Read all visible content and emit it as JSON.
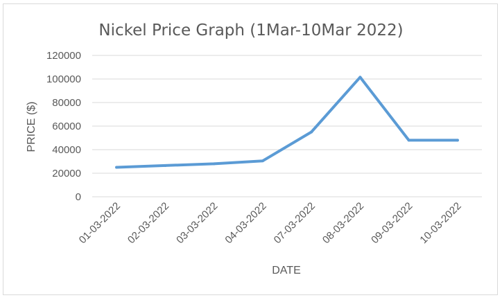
{
  "chart_data": {
    "type": "line",
    "title": "Nickel Price Graph (1Mar-10Mar 2022)",
    "xlabel": "DATE",
    "ylabel": "PRICE ($)",
    "categories": [
      "01-03-2022",
      "02-03-2022",
      "03-03-2022",
      "04-03-2022",
      "07-03-2022",
      "08-03-2022",
      "09-03-2022",
      "10-03-2022"
    ],
    "series": [
      {
        "values": [
          25000,
          26500,
          28000,
          30500,
          55000,
          101500,
          48000,
          48000
        ]
      }
    ],
    "yticks": [
      "0",
      "20000",
      "40000",
      "60000",
      "80000",
      "100000",
      "120000"
    ],
    "ylim": [
      0,
      120000
    ],
    "grid": true,
    "legend": "none",
    "line_color": "#5b9bd5"
  }
}
